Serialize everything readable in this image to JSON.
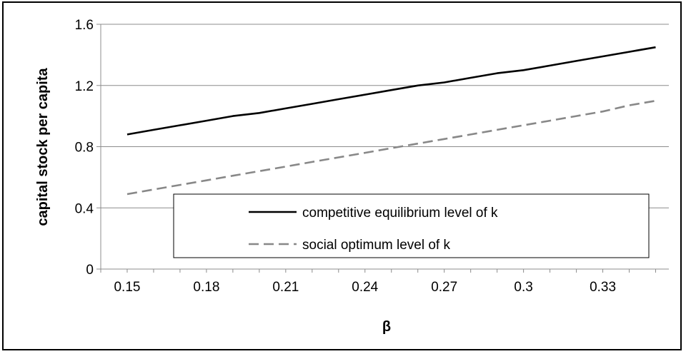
{
  "chart_data": {
    "type": "line",
    "xlabel": "β",
    "ylabel": "capital stock per capita",
    "x_ticks": [
      "0.15",
      "0.18",
      "0.21",
      "0.24",
      "0.27",
      "0.3",
      "0.33"
    ],
    "y_ticks": [
      "0",
      "0.4",
      "0.8",
      "1.2",
      "1.6"
    ],
    "xlim": [
      0.14,
      0.355
    ],
    "ylim": [
      0,
      1.6
    ],
    "grid": "horizontal",
    "legend_position": "bottom-center",
    "x": [
      0.15,
      0.16,
      0.17,
      0.18,
      0.19,
      0.2,
      0.21,
      0.22,
      0.23,
      0.24,
      0.25,
      0.26,
      0.27,
      0.28,
      0.29,
      0.3,
      0.31,
      0.32,
      0.33,
      0.34,
      0.35
    ],
    "series": [
      {
        "name": "competitive equilibrium level of k",
        "color": "#000000",
        "dash": "solid",
        "values": [
          0.88,
          0.91,
          0.94,
          0.97,
          1.0,
          1.02,
          1.05,
          1.08,
          1.11,
          1.14,
          1.17,
          1.2,
          1.22,
          1.25,
          1.28,
          1.3,
          1.33,
          1.36,
          1.39,
          1.42,
          1.45
        ]
      },
      {
        "name": "social optimum level of k",
        "color": "#888888",
        "dash": "dashed",
        "values": [
          0.49,
          0.52,
          0.55,
          0.58,
          0.61,
          0.64,
          0.67,
          0.7,
          0.73,
          0.76,
          0.79,
          0.82,
          0.85,
          0.88,
          0.91,
          0.94,
          0.97,
          1.0,
          1.03,
          1.07,
          1.1
        ]
      }
    ]
  }
}
